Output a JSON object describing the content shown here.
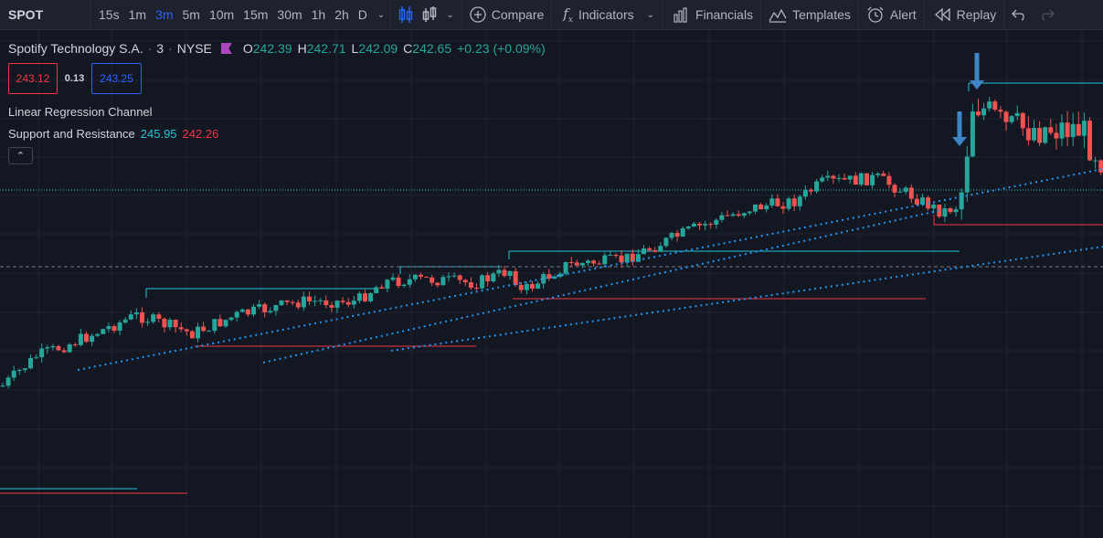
{
  "toolbar": {
    "symbol": "SPOT",
    "intervals": [
      "15s",
      "1m",
      "3m",
      "5m",
      "10m",
      "15m",
      "30m",
      "1h",
      "2h",
      "D"
    ],
    "active_interval": "3m",
    "compare_label": "Compare",
    "indicators_label": "Indicators",
    "financials_label": "Financials",
    "templates_label": "Templates",
    "alert_label": "Alert",
    "replay_label": "Replay"
  },
  "legend": {
    "title": "Spotify Technology S.A.",
    "interval": "3",
    "exchange": "NYSE",
    "open_key": "O",
    "open": "242.39",
    "high_key": "H",
    "high": "242.71",
    "low_key": "L",
    "low": "242.09",
    "close_key": "C",
    "close": "242.65",
    "change": "+0.23 (+0.09%)"
  },
  "trade": {
    "sell": "243.12",
    "spread": "0.13",
    "buy": "243.25"
  },
  "indicators": {
    "linreg": "Linear Regression Channel",
    "sr_label": "Support and Resistance",
    "sr_value1": "245.95",
    "sr_value2": "242.26"
  },
  "colors": {
    "background": "#131722",
    "toolbar": "#1e222d",
    "up": "#26a69a",
    "down": "#ef5350",
    "accent": "#2962ff",
    "resistance": "#26c6da",
    "support": "#f23645",
    "regression": "#2196f3",
    "arrow": "#3d85c6"
  },
  "icons": {
    "interval_menu": "chevron-down-icon",
    "chart_type": "candlestick-icon",
    "compare": "plus-circle-icon",
    "indicators": "fx-icon",
    "financials": "bar-chart-icon",
    "templates": "templates-icon",
    "alert": "alarm-clock-icon",
    "replay": "rewind-icon",
    "undo": "undo-icon",
    "redo": "redo-icon",
    "collapse": "chevron-up-icon"
  }
}
